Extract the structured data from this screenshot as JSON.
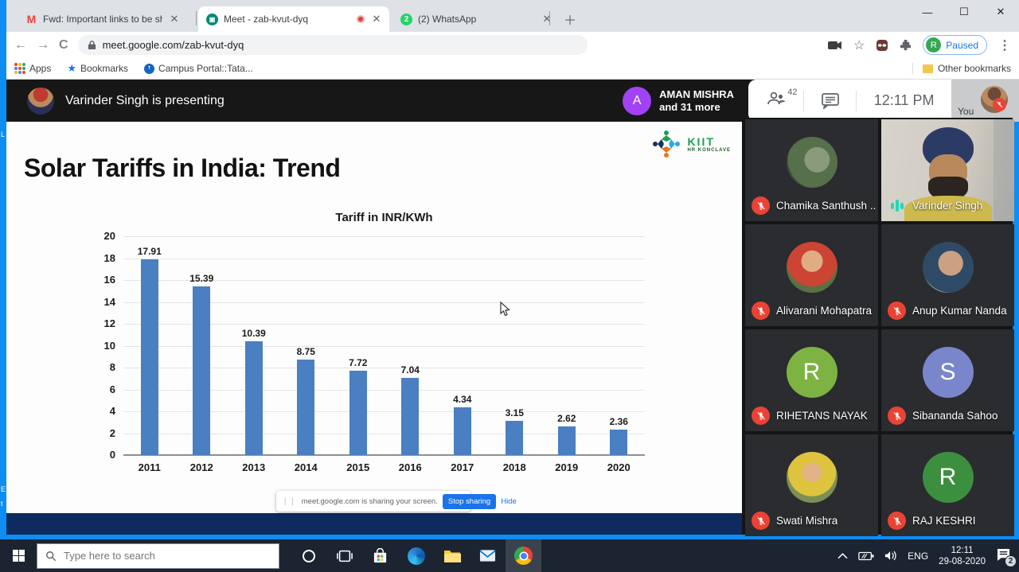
{
  "browser": {
    "tabs": [
      {
        "title": "Fwd: Important links to be share",
        "icon": "gmail"
      },
      {
        "title": "Meet - zab-kvut-dyq",
        "icon": "meet",
        "recording": true,
        "active": true
      },
      {
        "title": "(2) WhatsApp",
        "icon": "whatsapp",
        "badge": "2"
      }
    ],
    "url": "meet.google.com/zab-kvut-dyq",
    "profile": {
      "initial": "R",
      "status": "Paused"
    },
    "bookmarks": {
      "apps": "Apps",
      "bookmarks": "Bookmarks",
      "campus": "Campus Portal::Tata...",
      "other": "Other bookmarks"
    }
  },
  "meet": {
    "presenting_banner": "Varinder Singh is presenting",
    "speaker_overlay": {
      "initial": "A",
      "name": "AMAN MISHRA",
      "more": "and 31 more"
    },
    "participant_count": "42",
    "clock": "12:11 PM",
    "you_label": "You",
    "participants": [
      {
        "name": "Chamika Santhush ...",
        "mic": "muted",
        "avatar": {
          "type": "photo",
          "bg": "radial-gradient(circle at 60% 45%, #8a9a7a 0 30%, #55704a 31% 70%, #3e4a3a 71% 100%)"
        }
      },
      {
        "name": "Varinder Singh",
        "mic": "speaking",
        "avatar": {
          "type": "video"
        }
      },
      {
        "name": "Alivarani Mohapatra",
        "mic": "muted",
        "avatar": {
          "type": "photo",
          "bg": "radial-gradient(circle at 50% 38%, #e0ac84 0 26%, #cc4433 27% 62%, #5a7045 63% 100%)"
        }
      },
      {
        "name": "Anup Kumar Nanda",
        "mic": "muted",
        "avatar": {
          "type": "photo",
          "bg": "radial-gradient(circle at 55% 42%, #caa183 0 30%, #2e4a66 31% 72%, #8fa3b0 73% 100%)"
        }
      },
      {
        "name": "RIHETANS NAYAK",
        "mic": "muted",
        "avatar": {
          "type": "initial",
          "bg": "#7cb342",
          "letter": "R"
        }
      },
      {
        "name": "Sibananda Sahoo",
        "mic": "muted",
        "avatar": {
          "type": "initial",
          "bg": "#7986cb",
          "letter": "S"
        }
      },
      {
        "name": "Swati Mishra",
        "mic": "muted",
        "avatar": {
          "type": "photo",
          "bg": "radial-gradient(circle at 50% 40%, #e3b285 0 24%, #ddc33e 25% 60%, #7c8f55 61% 100%)"
        }
      },
      {
        "name": "RAJ KESHRI",
        "mic": "muted",
        "avatar": {
          "type": "initial",
          "bg": "#3d8f40",
          "letter": "R"
        }
      }
    ]
  },
  "slide": {
    "title": "Solar Tariffs in India: Trend",
    "logo_title": "KIIT",
    "logo_subtitle": "HR KONCLAVE",
    "edge_fragments": [
      "L",
      "E",
      "t"
    ]
  },
  "chart_data": {
    "type": "bar",
    "title": "Tariff in INR/KWh",
    "categories": [
      "2011",
      "2012",
      "2013",
      "2014",
      "2015",
      "2016",
      "2017",
      "2018",
      "2019",
      "2020"
    ],
    "values": [
      17.91,
      15.39,
      10.39,
      8.75,
      7.72,
      7.04,
      4.34,
      3.15,
      2.62,
      2.36
    ],
    "xlabel": "",
    "ylabel": "",
    "ylim": [
      0,
      20
    ],
    "ytick_step": 2,
    "bar_color": "#4a7fc1",
    "grid": true,
    "legend": false
  },
  "share_toast": {
    "message": "meet.google.com is sharing your screen.",
    "stop_button": "Stop sharing",
    "hide_link": "Hide"
  },
  "taskbar": {
    "search_placeholder": "Type here to search",
    "language": "ENG",
    "time": "12:11",
    "date": "29-08-2020",
    "notification_count": "2"
  },
  "colors": {
    "accent_blue": "#1a73e8",
    "mute_red": "#ea4335",
    "speaking_teal": "#1ed9b5",
    "share_border": "#0e8df2",
    "navy_strip": "#0e2a5e"
  }
}
